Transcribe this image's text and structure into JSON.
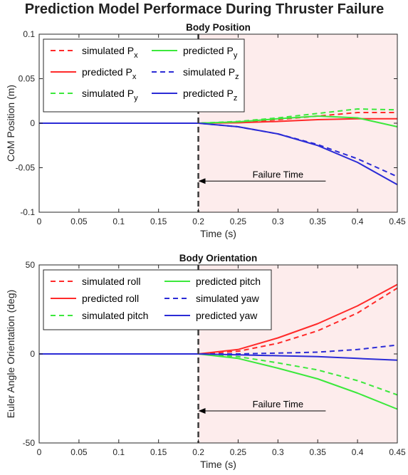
{
  "figure_title": "Prediction Model Performace During Thruster Failure",
  "colors": {
    "x": "#ff2a2a",
    "y": "#3ce83c",
    "z": "#2b2bd6",
    "failure_region": "#fdecec",
    "failure_line": "#3a3a3a"
  },
  "chart_data": [
    {
      "type": "line",
      "title": "Body Position",
      "xlabel": "Time (s)",
      "ylabel": "CoM Position (m)",
      "xlim": [
        0,
        0.45
      ],
      "ylim": [
        -0.1,
        0.1
      ],
      "xticks": [
        0,
        0.05,
        0.1,
        0.15,
        0.2,
        0.25,
        0.3,
        0.35,
        0.4,
        0.45
      ],
      "xticklabels": [
        "0",
        "0.05",
        "0.1",
        "0.15",
        "0.2",
        "0.25",
        "0.3",
        "0.35",
        "0.4",
        "0.45"
      ],
      "yticks": [
        -0.1,
        -0.05,
        0,
        0.05,
        0.1
      ],
      "yticklabels": [
        "-0.1",
        "-0.05",
        "0",
        "0.05",
        "0.1"
      ],
      "grid": false,
      "legend_position": "top-left",
      "failure_time": 0.2,
      "annotation": {
        "text": "Failure Time",
        "x": 0.2,
        "y": -0.065,
        "text_x": 0.3
      },
      "series": [
        {
          "name": "simulated P",
          "sub": "x",
          "color_key": "x",
          "style": "dashed",
          "x": [
            0,
            0.2,
            0.25,
            0.3,
            0.35,
            0.4,
            0.45
          ],
          "y": [
            0,
            0,
            0.001,
            0.004,
            0.008,
            0.012,
            0.012
          ]
        },
        {
          "name": "predicted P",
          "sub": "x",
          "color_key": "x",
          "style": "solid",
          "x": [
            0,
            0.2,
            0.25,
            0.3,
            0.35,
            0.4,
            0.45
          ],
          "y": [
            0,
            0,
            0.0005,
            0.002,
            0.004,
            0.005,
            0.005
          ]
        },
        {
          "name": "simulated P",
          "sub": "y",
          "color_key": "y",
          "style": "dashed",
          "x": [
            0,
            0.2,
            0.25,
            0.3,
            0.35,
            0.4,
            0.45
          ],
          "y": [
            0,
            0,
            0.002,
            0.006,
            0.011,
            0.016,
            0.015
          ]
        },
        {
          "name": "predicted P",
          "sub": "y",
          "color_key": "y",
          "style": "solid",
          "x": [
            0,
            0.2,
            0.25,
            0.3,
            0.35,
            0.4,
            0.45
          ],
          "y": [
            0,
            0,
            0.0015,
            0.005,
            0.008,
            0.006,
            -0.004
          ]
        },
        {
          "name": "simulated P",
          "sub": "z",
          "color_key": "z",
          "style": "dashed",
          "x": [
            0,
            0.2,
            0.25,
            0.3,
            0.35,
            0.4,
            0.45
          ],
          "y": [
            0,
            0,
            -0.004,
            -0.012,
            -0.024,
            -0.04,
            -0.06
          ]
        },
        {
          "name": "predicted P",
          "sub": "z",
          "color_key": "z",
          "style": "solid",
          "x": [
            0,
            0.2,
            0.25,
            0.3,
            0.35,
            0.4,
            0.45
          ],
          "y": [
            0,
            0,
            -0.004,
            -0.012,
            -0.025,
            -0.044,
            -0.069
          ]
        }
      ]
    },
    {
      "type": "line",
      "title": "Body Orientation",
      "xlabel": "Time (s)",
      "ylabel": "Euler Angle Orientation (deg)",
      "xlim": [
        0,
        0.45
      ],
      "ylim": [
        -50,
        50
      ],
      "xticks": [
        0,
        0.05,
        0.1,
        0.15,
        0.2,
        0.25,
        0.3,
        0.35,
        0.4,
        0.45
      ],
      "xticklabels": [
        "0",
        "0.05",
        "0.1",
        "0.15",
        "0.2",
        "0.25",
        "0.3",
        "0.35",
        "0.4",
        "0.45"
      ],
      "yticks": [
        -50,
        0,
        50
      ],
      "yticklabels": [
        "-50",
        "0",
        "50"
      ],
      "grid": false,
      "legend_position": "top-left",
      "failure_time": 0.2,
      "annotation": {
        "text": "Failure Time",
        "x": 0.2,
        "y": -32,
        "text_x": 0.3
      },
      "series": [
        {
          "name": "simulated roll",
          "color_key": "x",
          "style": "dashed",
          "x": [
            0,
            0.2,
            0.25,
            0.3,
            0.35,
            0.4,
            0.45
          ],
          "y": [
            0,
            0,
            1.5,
            6,
            13,
            23,
            37
          ]
        },
        {
          "name": "predicted roll",
          "color_key": "x",
          "style": "solid",
          "x": [
            0,
            0.2,
            0.25,
            0.3,
            0.35,
            0.4,
            0.45
          ],
          "y": [
            0,
            0,
            2.5,
            9,
            17,
            27,
            39
          ]
        },
        {
          "name": "simulated pitch",
          "color_key": "y",
          "style": "dashed",
          "x": [
            0,
            0.2,
            0.25,
            0.3,
            0.35,
            0.4,
            0.45
          ],
          "y": [
            0,
            0,
            -1.5,
            -5,
            -9,
            -15,
            -23
          ]
        },
        {
          "name": "predicted pitch",
          "color_key": "y",
          "style": "solid",
          "x": [
            0,
            0.2,
            0.25,
            0.3,
            0.35,
            0.4,
            0.45
          ],
          "y": [
            0,
            0,
            -2.5,
            -8,
            -14,
            -22,
            -31
          ]
        },
        {
          "name": "simulated yaw",
          "color_key": "z",
          "style": "dashed",
          "x": [
            0,
            0.2,
            0.25,
            0.3,
            0.35,
            0.4,
            0.45
          ],
          "y": [
            0,
            0,
            0,
            0.5,
            1,
            2.5,
            5
          ]
        },
        {
          "name": "predicted yaw",
          "color_key": "z",
          "style": "solid",
          "x": [
            0,
            0.2,
            0.25,
            0.3,
            0.35,
            0.4,
            0.45
          ],
          "y": [
            0,
            0,
            -0.5,
            -1,
            -1.5,
            -2.5,
            -3.5
          ]
        }
      ]
    }
  ]
}
